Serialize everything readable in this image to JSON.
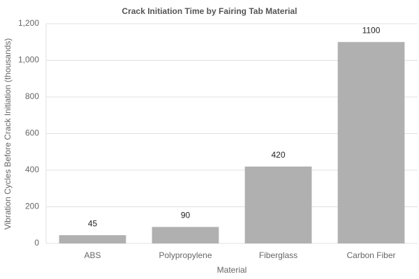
{
  "chart_data": {
    "type": "bar",
    "title": "Crack Initiation Time by Fairing Tab Material",
    "x_label": "Material",
    "y_label": "Vibration Cycles Before Crack Initiation (thousands)",
    "categories": [
      "ABS",
      "Polypropylene",
      "Fiberglass",
      "Carbon Fiber"
    ],
    "values": [
      45,
      90,
      420,
      1100
    ],
    "color": "#b0b0b0",
    "ylim": [
      0,
      1200
    ],
    "yticks": [
      0,
      200,
      400,
      600,
      800,
      {
        "value": 1000,
        "label": "1,000"
      },
      {
        "value": 1200,
        "label": "1,200"
      }
    ],
    "grid": true
  }
}
